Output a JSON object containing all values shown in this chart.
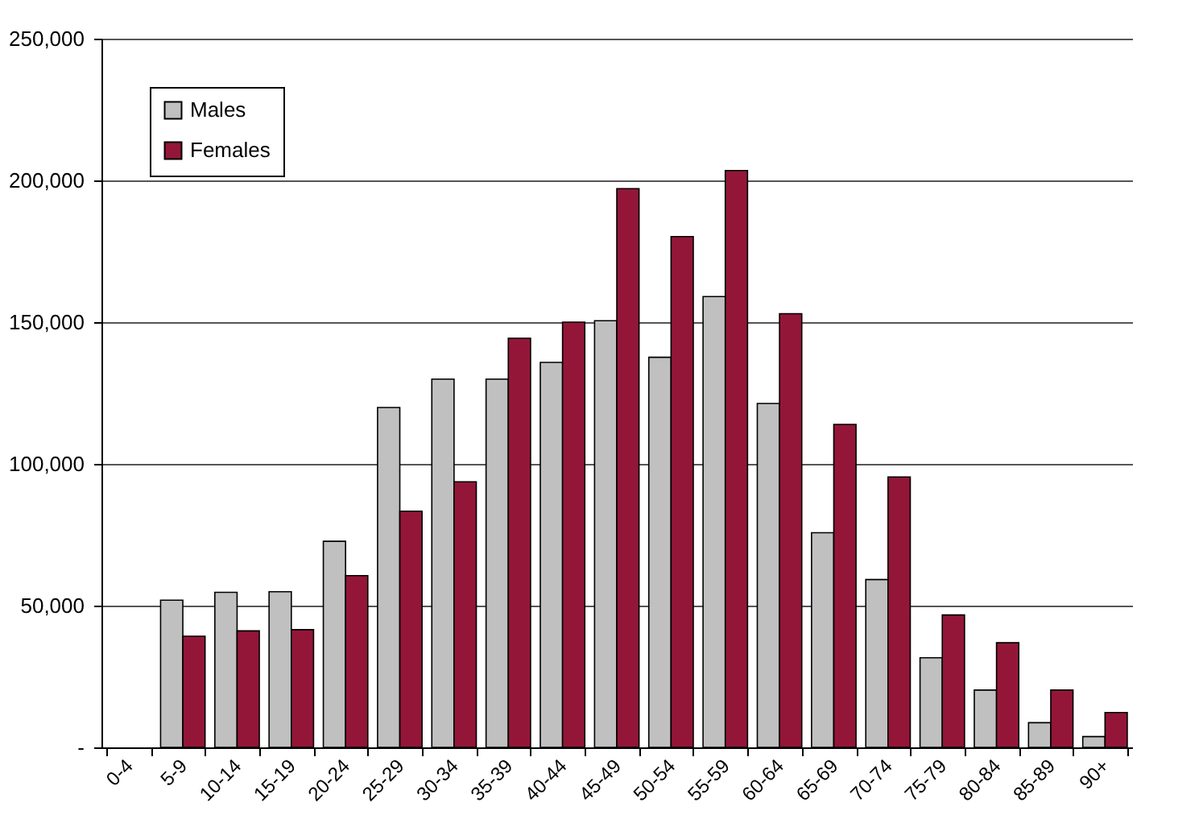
{
  "chart_data": {
    "type": "bar",
    "categories": [
      "0-4",
      "5-9",
      "10-14",
      "15-19",
      "20-24",
      "25-29",
      "30-34",
      "35-39",
      "40-44",
      "45-49",
      "50-54",
      "55-59",
      "60-64",
      "65-69",
      "70-74",
      "75-79",
      "80-84",
      "85-89",
      "90+"
    ],
    "series": [
      {
        "name": "Males",
        "color": "#c0c0c0",
        "values": [
          null,
          51900,
          54700,
          54900,
          72700,
          119900,
          129900,
          129900,
          135800,
          150500,
          137600,
          159000,
          121300,
          75700,
          59200,
          31600,
          20200,
          8700,
          3800
        ]
      },
      {
        "name": "Females",
        "color": "#931638",
        "values": [
          null,
          39200,
          41100,
          41500,
          60600,
          83300,
          93700,
          144300,
          150000,
          197100,
          180200,
          203500,
          153000,
          113900,
          95400,
          46700,
          36900,
          20200,
          12300
        ]
      }
    ],
    "ylim": [
      0,
      250000
    ],
    "yticks": [
      {
        "value": 0,
        "label": "-"
      },
      {
        "value": 50000,
        "label": "50,000"
      },
      {
        "value": 100000,
        "label": "100,000"
      },
      {
        "value": 150000,
        "label": "150,000"
      },
      {
        "value": 200000,
        "label": "200,000"
      },
      {
        "value": 250000,
        "label": "250,000"
      }
    ],
    "grid": "y",
    "legend": "top left"
  }
}
